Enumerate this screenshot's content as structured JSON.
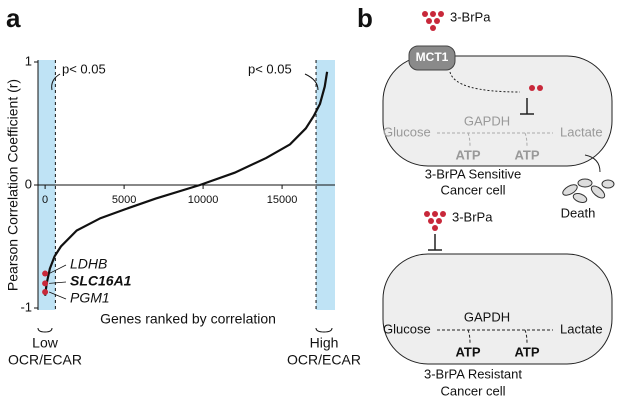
{
  "chart_data": {
    "type": "line",
    "panel_label": "a",
    "xlabel": "Genes ranked by correlation",
    "ylabel": "Pearson Correlation Coefficient (r)",
    "x": [
      0,
      100,
      300,
      600,
      1000,
      2000,
      3500,
      5000,
      7000,
      9800,
      12000,
      14000,
      15500,
      16500,
      17000,
      17400,
      17700,
      17850
    ],
    "values": [
      -0.9,
      -0.8,
      -0.68,
      -0.58,
      -0.5,
      -0.37,
      -0.27,
      -0.2,
      -0.11,
      0,
      0.1,
      0.22,
      0.33,
      0.46,
      0.56,
      0.66,
      0.8,
      0.92
    ],
    "color": "#111111",
    "xlim": [
      -450,
      18350
    ],
    "ylim": [
      -1,
      1
    ],
    "xticks": [
      0,
      5000,
      10000,
      15000
    ],
    "yticks": [
      -1,
      0,
      1
    ],
    "shaded_regions": [
      [
        -450,
        650
      ],
      [
        17150,
        18350
      ]
    ],
    "shade_color": "#bfe3f5",
    "highlights": [
      {
        "name": "LDHB",
        "x": 0,
        "y": -0.72
      },
      {
        "name": "SLC16A1",
        "x": 0,
        "y": -0.8
      },
      {
        "name": "PGM1",
        "x": 0,
        "y": -0.87
      }
    ],
    "highlight_color": "#c8283a",
    "annotations": {
      "p_left": "p< 0.05",
      "p_right": "p< 0.05",
      "low": [
        "Low",
        "OCR/ECAR"
      ],
      "high": [
        "High",
        "OCR/ECAR"
      ]
    }
  },
  "diagram": {
    "panel_label": "b",
    "top": {
      "drug": "3-BrPa",
      "transporter": "MCT1",
      "glucose": "Glucose",
      "enzyme": "GAPDH",
      "lactate": "Lactate",
      "atp1": "ATP",
      "atp2": "ATP",
      "caption": [
        "3-BrPA Sensitive",
        "Cancer cell"
      ],
      "outcome": "Death"
    },
    "bottom": {
      "drug": "3-BrPa",
      "glucose": "Glucose",
      "enzyme": "GAPDH",
      "lactate": "Lactate",
      "atp1": "ATP",
      "atp2": "ATP",
      "caption": [
        "3-BrPA Resistant",
        "Cancer cell"
      ]
    }
  }
}
